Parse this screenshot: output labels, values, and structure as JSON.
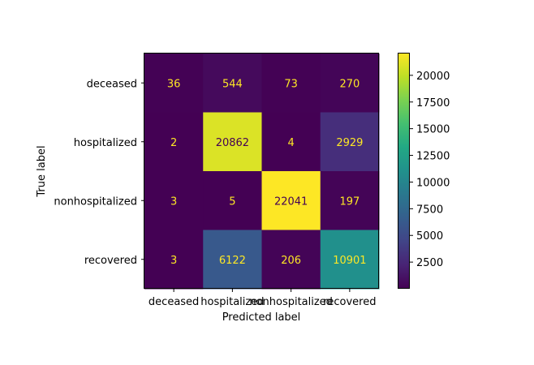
{
  "chart_data": {
    "type": "heatmap",
    "xlabel": "Predicted label",
    "ylabel": "True label",
    "x_categories": [
      "deceased",
      "hospitalized",
      "nonhospitalized",
      "recovered"
    ],
    "y_categories": [
      "deceased",
      "hospitalized",
      "nonhospitalized",
      "recovered"
    ],
    "values": [
      [
        36,
        544,
        73,
        270
      ],
      [
        2,
        20862,
        4,
        2929
      ],
      [
        3,
        5,
        22041,
        197
      ],
      [
        3,
        6122,
        206,
        10901
      ]
    ],
    "colormap": "viridis",
    "colorbar_range": [
      2,
      22041
    ],
    "colorbar_ticks": [
      2500,
      5000,
      7500,
      10000,
      12500,
      15000,
      17500,
      20000
    ],
    "text_color_dark": "#fde725",
    "text_color_light": "#440154"
  }
}
